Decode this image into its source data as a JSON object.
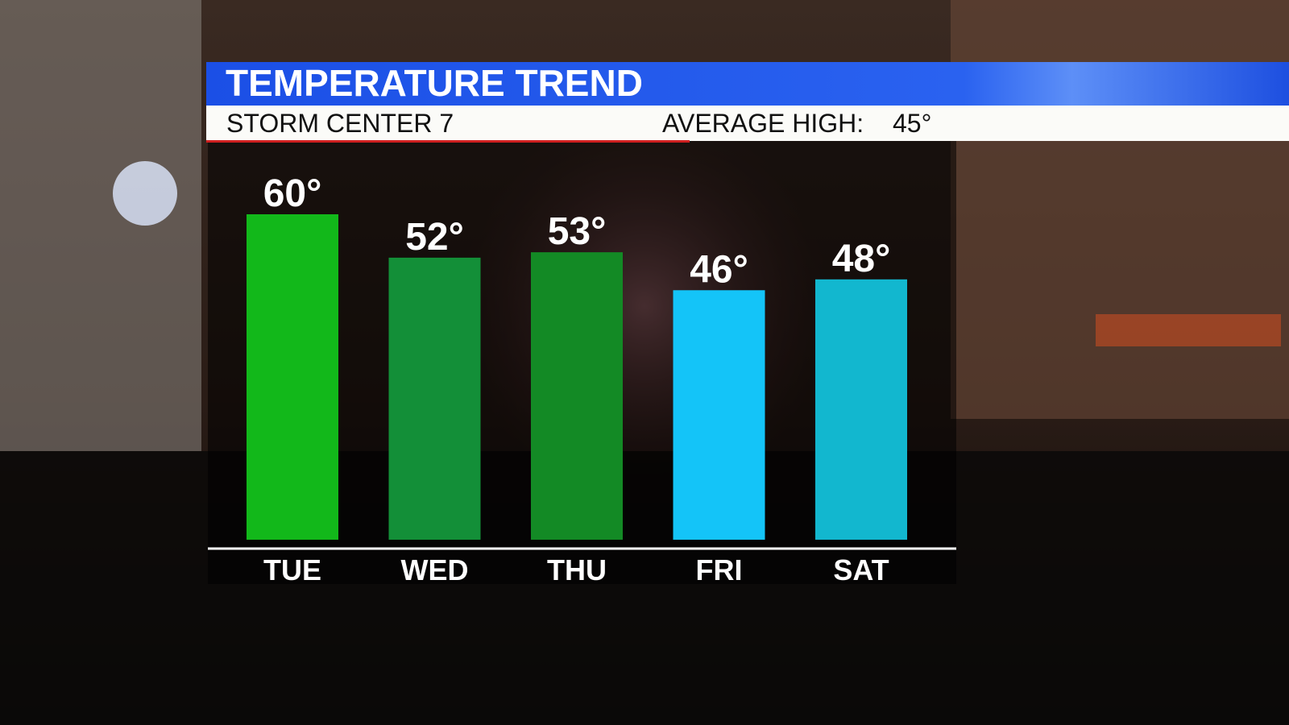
{
  "chart_data": {
    "type": "bar",
    "title": "TEMPERATURE TREND",
    "source": "STORM CENTER 7",
    "average_high_label": "AVERAGE HIGH:",
    "average_high": "45°",
    "categories": [
      "TUE",
      "WED",
      "THU",
      "FRI",
      "SAT"
    ],
    "values": [
      60,
      52,
      53,
      46,
      48
    ],
    "value_labels": [
      "60°",
      "52°",
      "53°",
      "46°",
      "48°"
    ],
    "colors": [
      "#12b81a",
      "#138f38",
      "#138a25",
      "#14c4f8",
      "#12b7cf"
    ]
  }
}
